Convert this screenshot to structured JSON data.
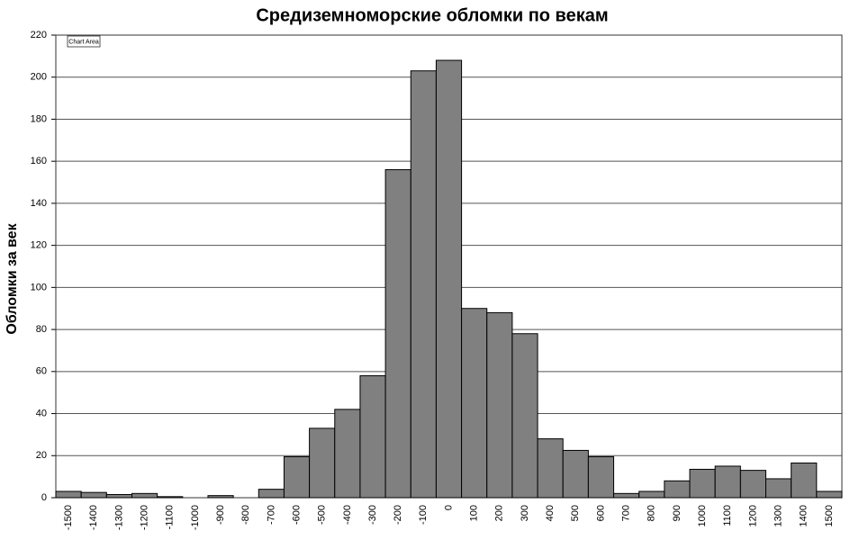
{
  "chart_data": {
    "type": "bar",
    "title": "Средиземноморские обломки по векам",
    "y_label": "Обломки за век",
    "tooltip": "Chart Area",
    "categories": [
      "-1500",
      "-1400",
      "-1300",
      "-1200",
      "-1100",
      "-1000",
      "-900",
      "-800",
      "-700",
      "-600",
      "-500",
      "-400",
      "-300",
      "-200",
      "-100",
      "0",
      "100",
      "200",
      "300",
      "400",
      "500",
      "600",
      "700",
      "800",
      "900",
      "1000",
      "1100",
      "1200",
      "1300",
      "1400",
      "1500"
    ],
    "values": [
      3,
      2.5,
      1.5,
      2,
      0.5,
      0,
      1,
      0,
      4,
      19.5,
      33,
      42,
      58,
      156,
      203,
      208,
      90,
      88,
      78,
      28,
      22.5,
      19.5,
      2,
      3,
      8,
      13.5,
      15,
      13,
      9,
      16.5,
      3
    ],
    "color": "#808080",
    "ylim": [
      0,
      220
    ],
    "yticks": [
      0,
      20,
      40,
      60,
      80,
      100,
      120,
      140,
      160,
      180,
      200,
      220
    ],
    "grid": true
  }
}
